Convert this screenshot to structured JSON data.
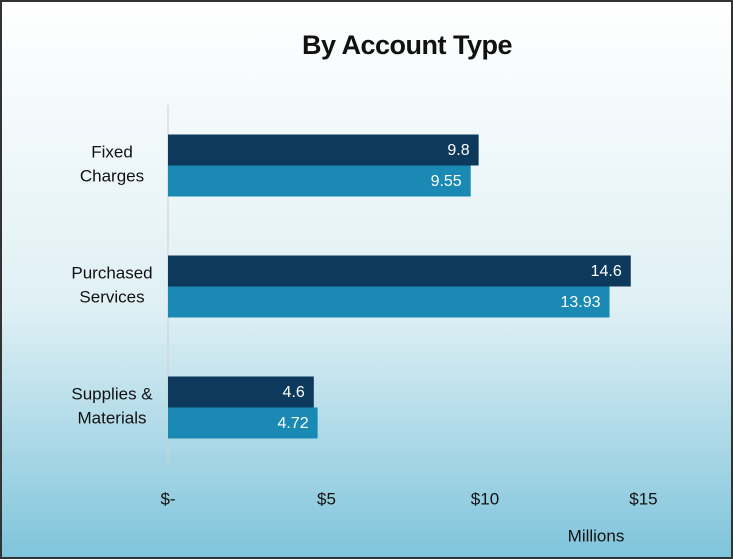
{
  "chart_data": {
    "type": "barh",
    "title": "By Account Type",
    "categories": [
      "Fixed Charges",
      "Purchased Services",
      "Supplies & Materials"
    ],
    "series": [
      {
        "color": "#0d3a5c",
        "values": [
          9.8,
          14.6,
          4.6
        ]
      },
      {
        "color": "#1a8ab4",
        "values": [
          9.55,
          13.93,
          4.72
        ]
      }
    ],
    "xlabel": "Millions",
    "xlim": [
      0,
      16.5
    ],
    "xticks": [
      {
        "value": 0,
        "label": "$-"
      },
      {
        "value": 5,
        "label": "$5"
      },
      {
        "value": 10,
        "label": "$10"
      },
      {
        "value": 15,
        "label": "$15"
      }
    ]
  }
}
